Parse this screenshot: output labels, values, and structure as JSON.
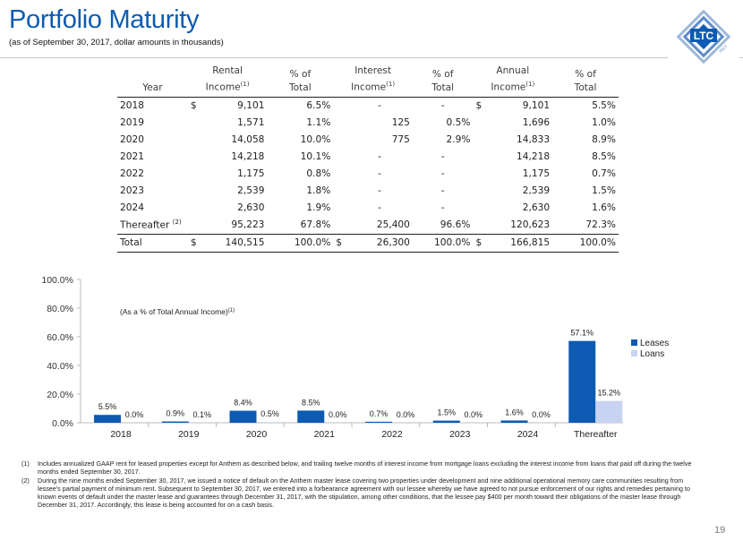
{
  "header": {
    "title": "Portfolio Maturity",
    "subtitle": "(as of September 30, 2017, dollar amounts in thousands)",
    "logo_text": "LTC",
    "logo_subtext": "REIT"
  },
  "table": {
    "headers": {
      "year": "Year",
      "rental_1": "Rental",
      "rental_2": "Income",
      "pct_total_1": "% of",
      "pct_total_2": "Total",
      "interest_1": "Interest",
      "interest_2": "Income",
      "annual_1": "Annual",
      "annual_2": "Income",
      "footnote_ref": "(1)"
    },
    "rows": [
      {
        "year": "2018",
        "rental_cur": "$",
        "rental": "9,101",
        "rental_pct": "6.5%",
        "interest_cur": "",
        "interest": "-",
        "interest_pct": "-",
        "annual_cur": "$",
        "annual": "9,101",
        "annual_pct": "5.5%"
      },
      {
        "year": "2019",
        "rental_cur": "",
        "rental": "1,571",
        "rental_pct": "1.1%",
        "interest_cur": "",
        "interest": "125",
        "interest_pct": "0.5%",
        "annual_cur": "",
        "annual": "1,696",
        "annual_pct": "1.0%"
      },
      {
        "year": "2020",
        "rental_cur": "",
        "rental": "14,058",
        "rental_pct": "10.0%",
        "interest_cur": "",
        "interest": "775",
        "interest_pct": "2.9%",
        "annual_cur": "",
        "annual": "14,833",
        "annual_pct": "8.9%"
      },
      {
        "year": "2021",
        "rental_cur": "",
        "rental": "14,218",
        "rental_pct": "10.1%",
        "interest_cur": "",
        "interest": "-",
        "interest_pct": "-",
        "annual_cur": "",
        "annual": "14,218",
        "annual_pct": "8.5%"
      },
      {
        "year": "2022",
        "rental_cur": "",
        "rental": "1,175",
        "rental_pct": "0.8%",
        "interest_cur": "",
        "interest": "-",
        "interest_pct": "-",
        "annual_cur": "",
        "annual": "1,175",
        "annual_pct": "0.7%"
      },
      {
        "year": "2023",
        "rental_cur": "",
        "rental": "2,539",
        "rental_pct": "1.8%",
        "interest_cur": "",
        "interest": "-",
        "interest_pct": "-",
        "annual_cur": "",
        "annual": "2,539",
        "annual_pct": "1.5%"
      },
      {
        "year": "2024",
        "rental_cur": "",
        "rental": "2,630",
        "rental_pct": "1.9%",
        "interest_cur": "",
        "interest": "-",
        "interest_pct": "-",
        "annual_cur": "",
        "annual": "2,630",
        "annual_pct": "1.6%"
      },
      {
        "year": "Thereafter",
        "year_sup": "(2)",
        "rental_cur": "",
        "rental": "95,223",
        "rental_pct": "67.8%",
        "interest_cur": "",
        "interest": "25,400",
        "interest_pct": "96.6%",
        "annual_cur": "",
        "annual": "120,623",
        "annual_pct": "72.3%"
      }
    ],
    "total": {
      "year": "Total",
      "rental_cur": "$",
      "rental": "140,515",
      "rental_pct": "100.0%",
      "interest_cur": "$",
      "interest": "26,300",
      "interest_pct": "100.0%",
      "annual_cur": "$",
      "annual": "166,815",
      "annual_pct": "100.0%"
    }
  },
  "chart_data": {
    "type": "bar",
    "title": "(As a % of Total Annual Income)",
    "title_sup": "(1)",
    "categories": [
      "2018",
      "2019",
      "2020",
      "2021",
      "2022",
      "2023",
      "2024",
      "Thereafter"
    ],
    "series": [
      {
        "name": "Leases",
        "values": [
          5.5,
          0.9,
          8.4,
          8.5,
          0.7,
          1.5,
          1.6,
          57.1
        ],
        "labels": [
          "5.5%",
          "0.9%",
          "8.4%",
          "8.5%",
          "0.7%",
          "1.5%",
          "1.6%",
          "57.1%"
        ],
        "color": "#0d5bb3"
      },
      {
        "name": "Loans",
        "values": [
          0.0,
          0.1,
          0.5,
          0.0,
          0.0,
          0.0,
          0.0,
          15.2
        ],
        "labels": [
          "0.0%",
          "0.1%",
          "0.5%",
          "0.0%",
          "0.0%",
          "0.0%",
          "0.0%",
          "15.2%"
        ],
        "color": "#c7d3f0"
      }
    ],
    "ylim": [
      0,
      100
    ],
    "yticks": [
      0,
      20,
      40,
      60,
      80,
      100
    ],
    "ytick_labels": [
      "0.0%",
      "20.0%",
      "40.0%",
      "60.0%",
      "80.0%",
      "100.0%"
    ],
    "legend": "right"
  },
  "footnotes": [
    {
      "num": "(1)",
      "text": "Includes annualized GAAP rent for leased properties except for Anthem as described below, and trailing twelve months of interest income from mortgage loans excluding the interest income from loans that paid off during the twelve months ended September 30, 2017."
    },
    {
      "num": "(2)",
      "text": "During the nine months ended September 30, 2017, we issued a notice of default on the Anthem master lease covering two properties under development and nine additional operational memory care communities resulting from lessee's partial payment of minimum rent.  Subsequent to September 30, 2017, we entered into a forbearance agreement with our lessee whereby we have agreed to not pursue enforcement of our rights and remedies pertaining to known events of default under the master lease and guarantees through December 31, 2017, with the stipulation, among other conditions, that the lessee pay $400 per month toward their obligations of the master lease through December 31, 2017.  Accordingly, this lease is being accounted for on a cash basis."
    }
  ],
  "page_number": "19",
  "colors": {
    "brand": "#0d5bb3",
    "leases": "#0d5bb3",
    "loans": "#c7d3f0"
  }
}
